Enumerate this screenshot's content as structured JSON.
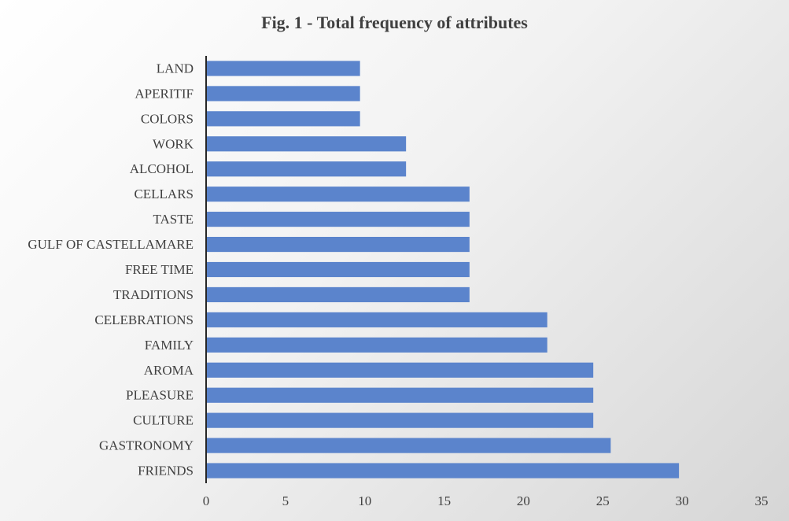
{
  "chart_data": {
    "type": "bar",
    "orientation": "horizontal",
    "title": "Fig. 1 - Total frequency of attributes",
    "categories": [
      "FRIENDS",
      "GASTRONOMY",
      "CULTURE",
      "PLEASURE",
      "AROMA",
      "FAMILY",
      "CELEBRATIONS",
      "TRADITIONS",
      "FREE TIME",
      "GULF OF CASTELLAMARE",
      "TASTE",
      "CELLARS",
      "ALCOHOL",
      "WORK",
      "COLORS",
      "APERITIF",
      "LAND"
    ],
    "values": [
      29.8,
      25.5,
      24.4,
      24.4,
      24.4,
      21.5,
      21.5,
      16.6,
      16.6,
      16.6,
      16.6,
      16.6,
      12.6,
      12.6,
      9.7,
      9.7,
      9.7
    ],
    "xlim": [
      0,
      35
    ],
    "xticks": [
      0,
      5,
      10,
      15,
      20,
      25,
      30,
      35
    ],
    "xlabel": "",
    "ylabel": "",
    "grid": false,
    "legend": "none",
    "bar_color": "#5B84CC"
  }
}
